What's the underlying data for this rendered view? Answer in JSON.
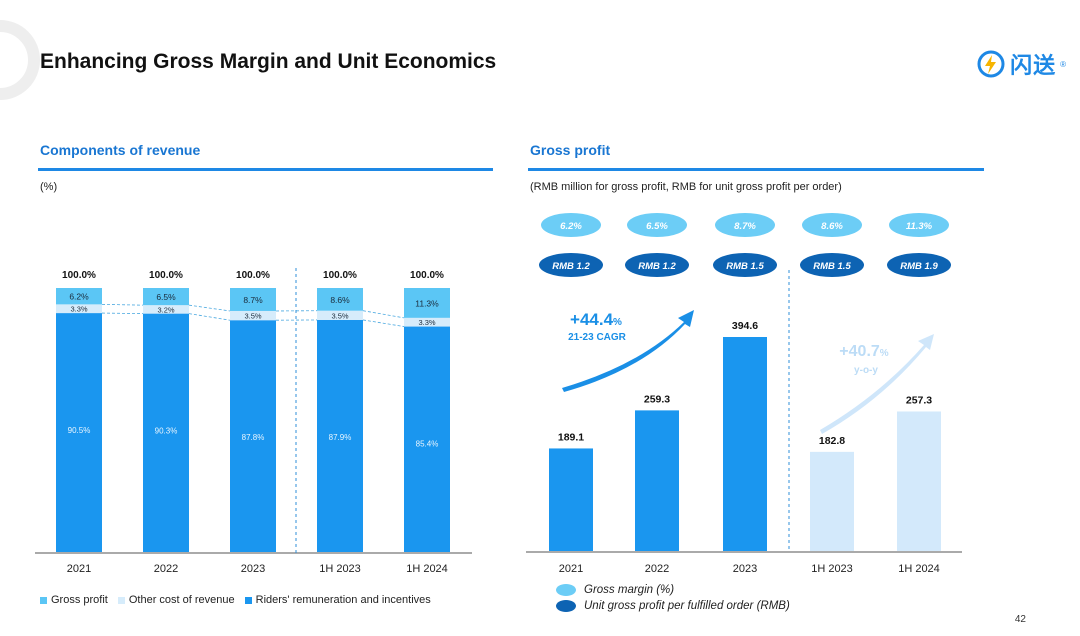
{
  "page": {
    "title": "Enhancing Gross Margin and Unit Economics",
    "logo_text": "闪送",
    "logo_mark": "®",
    "page_number": "42"
  },
  "colors": {
    "accent": "#1e88e5",
    "riders": "#1a96ef",
    "other_cost": "#d6ecfb",
    "gross_profit_seg": "#5bc6f5",
    "gp_bar": "#1a96ef",
    "gp_bar_light": "#d3e9fb",
    "margin_pill": "#6ccdf6",
    "unit_pill": "#0d63b3"
  },
  "chart_data": [
    {
      "type": "bar",
      "stacked": true,
      "title": "Components of revenue",
      "unit_note": "(%)",
      "categories": [
        "2021",
        "2022",
        "2023",
        "1H 2023",
        "1H 2024"
      ],
      "totals": [
        "100.0%",
        "100.0%",
        "100.0%",
        "100.0%",
        "100.0%"
      ],
      "series": [
        {
          "name": "Riders' remuneration and incentives",
          "values": [
            90.5,
            90.3,
            87.8,
            87.9,
            85.4
          ],
          "labels": [
            "90.5%",
            "90.3%",
            "87.8%",
            "87.9%",
            "85.4%"
          ]
        },
        {
          "name": "Other cost of revenue",
          "values": [
            3.3,
            3.2,
            3.5,
            3.5,
            3.3
          ],
          "labels": [
            "3.3%",
            "3.2%",
            "3.5%",
            "3.5%",
            "3.3%"
          ]
        },
        {
          "name": "Gross profit",
          "values": [
            6.2,
            6.5,
            8.7,
            8.6,
            11.3
          ],
          "labels": [
            "6.2%",
            "6.5%",
            "8.7%",
            "8.6%",
            "11.3%"
          ]
        }
      ],
      "legend": [
        "Gross profit",
        "Other cost of revenue",
        "Riders' remuneration and incentives"
      ],
      "legend_position": "bottom",
      "divider_after_index": 2
    },
    {
      "type": "bar",
      "title": "Gross profit",
      "unit_note": "(RMB million for gross profit, RMB for unit gross profit per order)",
      "categories": [
        "2021",
        "2022",
        "2023",
        "1H 2023",
        "1H 2024"
      ],
      "values": [
        189.1,
        259.3,
        394.6,
        182.8,
        257.3
      ],
      "value_labels": [
        "189.1",
        "259.3",
        "394.6",
        "182.8",
        "257.3"
      ],
      "gross_margin": [
        "6.2%",
        "6.5%",
        "8.7%",
        "8.6%",
        "11.3%"
      ],
      "unit_gross_profit": [
        "RMB 1.2",
        "RMB 1.2",
        "RMB 1.5",
        "RMB 1.5",
        "RMB 1.9"
      ],
      "annotations": [
        {
          "value": "+44.4",
          "suffix": "%",
          "label": "21-23 CAGR"
        },
        {
          "value": "+40.7",
          "suffix": "%",
          "label": "y-o-y"
        }
      ],
      "legend": [
        "Gross margin (%)",
        "Unit gross profit per fulfilled order (RMB)"
      ],
      "legend_position": "bottom",
      "divider_after_index": 2
    }
  ]
}
